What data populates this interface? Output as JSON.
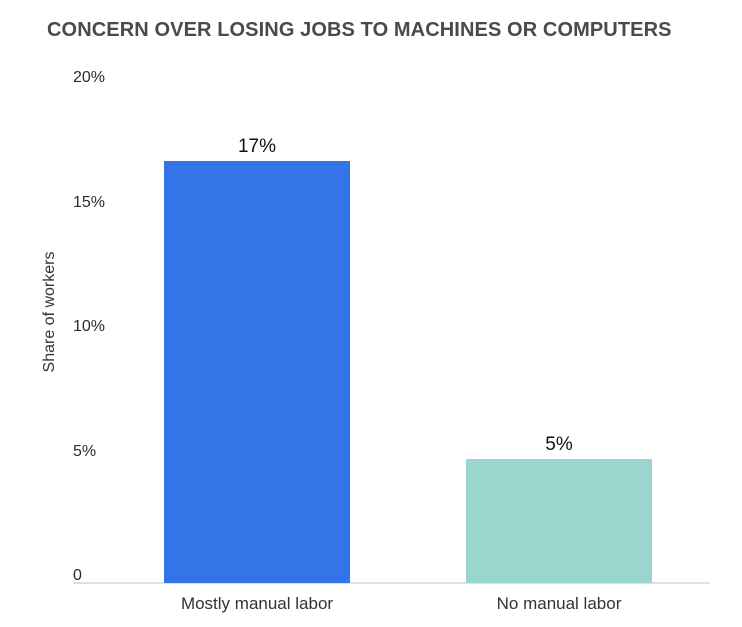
{
  "page": {
    "background": "#FFFFFF"
  },
  "chart_data": {
    "type": "bar",
    "title": "CONCERN OVER LOSING JOBS TO MACHINES OR COMPUTERS",
    "subtitle": "",
    "xlabel": "",
    "ylabel": "Share of workers",
    "categories": [
      "Mostly manual labor",
      "No manual labor"
    ],
    "values": [
      17,
      5
    ],
    "value_labels": [
      "17%",
      "5%"
    ],
    "bar_colors": [
      "#3573E9",
      "#9AD5CE"
    ],
    "yticks": [
      {
        "value": 0,
        "label": "0"
      },
      {
        "value": 5,
        "label": "5%"
      },
      {
        "value": 10,
        "label": "10%"
      },
      {
        "value": 15,
        "label": "15%"
      },
      {
        "value": 20,
        "label": "20%"
      }
    ],
    "ylim": [
      0,
      20
    ],
    "grid": false,
    "legend": "none",
    "colors": {
      "title": "#4A4A4A",
      "axis_text": "#333333",
      "tick_text": "#2B2B2B",
      "value_label_text": "#111111",
      "baseline": "#E0E0E0",
      "background": "#FFFFFF"
    }
  }
}
